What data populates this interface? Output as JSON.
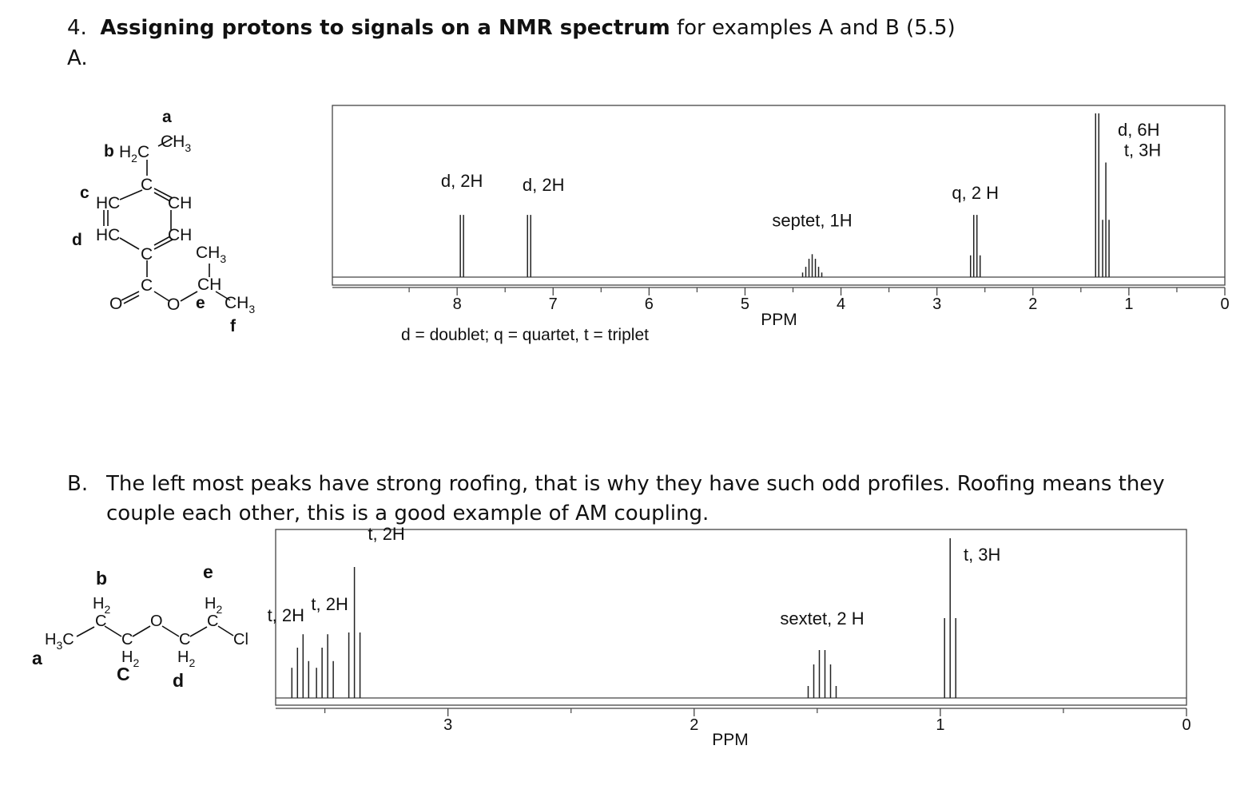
{
  "question": {
    "number": "4.",
    "title_bold": "Assigning protons to signals on a NMR spectrum",
    "title_rest": " for examples A and B (5.5)"
  },
  "section_a": {
    "label": "A.",
    "molecule_labels": {
      "a": "a",
      "b": "b",
      "c": "c",
      "d": "d",
      "e": "e",
      "f": "f",
      "ch3_a": "CH",
      "h2c_b": "H",
      "hc_c": "HC",
      "ch_c2": "CH",
      "hc_d": "HC",
      "ch_d2": "CH",
      "ch3_top": "CH",
      "ch_e": "CH",
      "ch3_f": "CH",
      "c_ring_top": "C",
      "c_ring_bot": "C",
      "c_carbonyl": "C",
      "o_keto": "O",
      "o_ester": "O",
      "sub3": "3",
      "sub2": "2",
      "c_label": "C"
    },
    "spectrum": {
      "xlabel": "PPM",
      "note": "d = doublet; q = quartet, t = triplet",
      "ticks": [
        "8",
        "7",
        "6",
        "5",
        "4",
        "3",
        "2",
        "1",
        "0"
      ],
      "xlim": [
        9.3,
        0
      ],
      "peaks": [
        {
          "label": "d, 2H",
          "ppm": 7.95,
          "mult": "d",
          "height": 0.38
        },
        {
          "label": "d, 2H",
          "ppm": 7.25,
          "mult": "d",
          "height": 0.38
        },
        {
          "label": "septet, 1H",
          "ppm": 4.3,
          "mult": "septet",
          "height": 0.14
        },
        {
          "label": "q, 2 H",
          "ppm": 2.6,
          "mult": "q",
          "height": 0.38
        },
        {
          "label": "d, 6H",
          "ppm": 1.33,
          "mult": "d",
          "height": 1.0
        },
        {
          "label": "t, 3H",
          "ppm": 1.24,
          "mult": "t",
          "height": 0.7
        }
      ]
    }
  },
  "section_b": {
    "label": "B.",
    "text": "The left most peaks have strong roofing, that is why they have such odd profiles.  Roofing means they couple each other, this is a good example of AM coupling.",
    "molecule_labels": {
      "a": "a",
      "b": "b",
      "c": "C",
      "d": "d",
      "e": "e",
      "h3c": "H",
      "h2": "H",
      "o": "O",
      "cl": "Cl",
      "sub3": "3",
      "sub2": "2"
    },
    "spectrum": {
      "xlabel": "PPM",
      "ticks": [
        "3",
        "2",
        "1",
        "0"
      ],
      "xlim": [
        3.7,
        0
      ],
      "peaks": [
        {
          "label": "t, 2H",
          "ppm": 3.6,
          "mult": "t-roof",
          "height": 0.42
        },
        {
          "label": "t, 2H",
          "ppm": 3.5,
          "mult": "t-roof",
          "height": 0.42
        },
        {
          "label": "t, 2H",
          "ppm": 3.38,
          "mult": "t",
          "height": 0.82
        },
        {
          "label": "sextet, 2 H",
          "ppm": 1.48,
          "mult": "sextet",
          "height": 0.3
        },
        {
          "label": "t, 3H",
          "ppm": 0.96,
          "mult": "t",
          "height": 1.0
        }
      ]
    }
  }
}
